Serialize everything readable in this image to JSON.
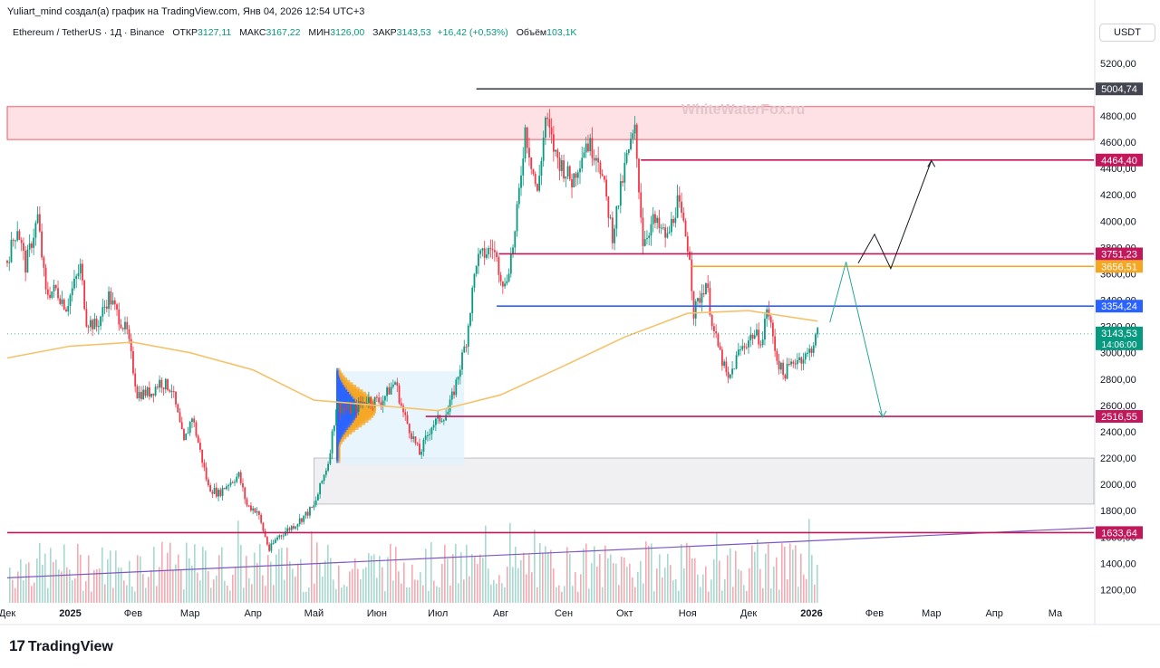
{
  "header": {
    "credit": "Yuliart_mind создал(а) график на TradingView.com, Янв 04, 2026 12:54 UTC+3"
  },
  "symbol": {
    "name": "Ethereum / TetherUS · 1Д · Binance",
    "open_label": "ОТКР",
    "open": "3127,11",
    "high_label": "МАКС",
    "high": "3167,22",
    "low_label": "МИН",
    "low": "3126,00",
    "close_label": "ЗАКР",
    "close": "3143,53",
    "change": "+16,42 (+0,53%)",
    "volume_label": "Объём",
    "volume": "103,1K"
  },
  "price_axis": {
    "currency": "USDT"
  },
  "watermark": "WhiteWaterFox.ru",
  "logo": {
    "text": "TradingView",
    "mark": "17"
  },
  "colors": {
    "up": "#089981",
    "down": "#f23645",
    "ma": "#f5c26b",
    "magenta": "#c2185b",
    "orange": "#f5a623",
    "blue": "#2962ff",
    "purple": "#7e57c2"
  },
  "chart_data": {
    "type": "candlestick",
    "y_ticks": [
      1200,
      1400,
      1600,
      1800,
      2000,
      2200,
      2400,
      2600,
      2800,
      3000,
      3200,
      3400,
      3600,
      3800,
      4000,
      4200,
      4400,
      4600,
      4800,
      5000,
      5200
    ],
    "y_tick_labels": [
      "1200,00",
      "1400,00",
      "1600,00",
      "1800,00",
      "2000,00",
      "2200,00",
      "2400,00",
      "2600,00",
      "2800,00",
      "3000,00",
      "3200,00",
      "3400,00",
      "3600,00",
      "3800,00",
      "4000,00",
      "4200,00",
      "4400,00",
      "4600,00",
      "4800,00",
      "5000,00",
      "5200,00"
    ],
    "ylim": [
      1100,
      5350
    ],
    "x_labels": [
      "Дек",
      "2025",
      "Фев",
      "Мар",
      "Апр",
      "Май",
      "Июн",
      "Июл",
      "Авг",
      "Сен",
      "Окт",
      "Ноя",
      "Дек",
      "2026",
      "Фев",
      "Мар",
      "Апр",
      "Ма"
    ],
    "x_label_dates": [
      "2024-12-01",
      "2025-01-01",
      "2025-02-01",
      "2025-03-01",
      "2025-04-01",
      "2025-05-01",
      "2025-06-01",
      "2025-07-01",
      "2025-08-01",
      "2025-09-01",
      "2025-10-01",
      "2025-11-01",
      "2025-12-01",
      "2026-01-01",
      "2026-02-01",
      "2026-03-01",
      "2026-04-01",
      "2026-05-01"
    ],
    "x_bold": [
      "2025",
      "2026"
    ],
    "close_path": [
      [
        "2024-12-01",
        3700
      ],
      [
        "2024-12-06",
        3960
      ],
      [
        "2024-12-10",
        3660
      ],
      [
        "2024-12-16",
        4030
      ],
      [
        "2024-12-20",
        3450
      ],
      [
        "2024-12-25",
        3480
      ],
      [
        "2024-12-30",
        3350
      ],
      [
        "2025-01-06",
        3650
      ],
      [
        "2025-01-09",
        3250
      ],
      [
        "2025-01-14",
        3200
      ],
      [
        "2025-01-20",
        3430
      ],
      [
        "2025-01-24",
        3300
      ],
      [
        "2025-01-29",
        3150
      ],
      [
        "2025-02-03",
        2690
      ],
      [
        "2025-02-10",
        2700
      ],
      [
        "2025-02-14",
        2780
      ],
      [
        "2025-02-20",
        2730
      ],
      [
        "2025-02-26",
        2310
      ],
      [
        "2025-03-02",
        2520
      ],
      [
        "2025-03-10",
        1980
      ],
      [
        "2025-03-15",
        1930
      ],
      [
        "2025-03-20",
        2010
      ],
      [
        "2025-03-25",
        2070
      ],
      [
        "2025-03-29",
        1840
      ],
      [
        "2025-04-03",
        1800
      ],
      [
        "2025-04-09",
        1500
      ],
      [
        "2025-04-13",
        1600
      ],
      [
        "2025-04-22",
        1700
      ],
      [
        "2025-05-01",
        1830
      ],
      [
        "2025-05-08",
        2170
      ],
      [
        "2025-05-12",
        2590
      ],
      [
        "2025-05-20",
        2560
      ],
      [
        "2025-05-27",
        2650
      ],
      [
        "2025-06-03",
        2630
      ],
      [
        "2025-06-10",
        2780
      ],
      [
        "2025-06-14",
        2540
      ],
      [
        "2025-06-22",
        2230
      ],
      [
        "2025-06-28",
        2450
      ],
      [
        "2025-07-06",
        2550
      ],
      [
        "2025-07-10",
        2770
      ],
      [
        "2025-07-15",
        3100
      ],
      [
        "2025-07-20",
        3700
      ],
      [
        "2025-07-28",
        3800
      ],
      [
        "2025-08-03",
        3500
      ],
      [
        "2025-08-08",
        3900
      ],
      [
        "2025-08-13",
        4700
      ],
      [
        "2025-08-19",
        4200
      ],
      [
        "2025-08-23",
        4780
      ],
      [
        "2025-08-28",
        4500
      ],
      [
        "2025-09-05",
        4300
      ],
      [
        "2025-09-12",
        4600
      ],
      [
        "2025-09-18",
        4500
      ],
      [
        "2025-09-25",
        3900
      ],
      [
        "2025-10-02",
        4480
      ],
      [
        "2025-10-06",
        4680
      ],
      [
        "2025-10-10",
        3850
      ],
      [
        "2025-10-15",
        4000
      ],
      [
        "2025-10-22",
        3870
      ],
      [
        "2025-10-27",
        4150
      ],
      [
        "2025-11-02",
        3750
      ],
      [
        "2025-11-04",
        3300
      ],
      [
        "2025-11-10",
        3540
      ],
      [
        "2025-11-14",
        3150
      ],
      [
        "2025-11-21",
        2780
      ],
      [
        "2025-11-26",
        3000
      ],
      [
        "2025-12-03",
        3140
      ],
      [
        "2025-12-08",
        3100
      ],
      [
        "2025-12-10",
        3350
      ],
      [
        "2025-12-15",
        2960
      ],
      [
        "2025-12-18",
        2830
      ],
      [
        "2025-12-24",
        2950
      ],
      [
        "2025-12-30",
        2980
      ],
      [
        "2026-01-04",
        3143
      ]
    ],
    "ma_path": [
      [
        "2024-12-01",
        2960
      ],
      [
        "2025-01-01",
        3050
      ],
      [
        "2025-02-01",
        3080
      ],
      [
        "2025-03-01",
        3000
      ],
      [
        "2025-04-01",
        2870
      ],
      [
        "2025-05-01",
        2640
      ],
      [
        "2025-06-01",
        2600
      ],
      [
        "2025-07-01",
        2560
      ],
      [
        "2025-08-01",
        2680
      ],
      [
        "2025-09-01",
        2900
      ],
      [
        "2025-10-01",
        3120
      ],
      [
        "2025-11-01",
        3300
      ],
      [
        "2025-12-01",
        3320
      ],
      [
        "2026-01-04",
        3240
      ]
    ],
    "horizontal_levels": [
      {
        "name": "level-5004",
        "value": 5004.74,
        "label": "5004,74",
        "color": "#434651",
        "from": "2025-07-20"
      },
      {
        "name": "level-4464",
        "value": 4464.4,
        "label": "4464,40",
        "color": "#c2185b",
        "from": "2025-10-09"
      },
      {
        "name": "level-3751",
        "value": 3751.23,
        "label": "3751,23",
        "color": "#c2185b",
        "from": "2025-07-31"
      },
      {
        "name": "level-3656",
        "value": 3656.51,
        "label": "3656,51",
        "color": "#f5a623",
        "from": "2025-11-03"
      },
      {
        "name": "level-3354",
        "value": 3354.24,
        "label": "3354,24",
        "color": "#2962ff",
        "from": "2025-07-30"
      },
      {
        "name": "level-2516",
        "value": 2516.55,
        "label": "2516,55",
        "color": "#c2185b",
        "from": "2025-06-25"
      },
      {
        "name": "level-1633",
        "value": 1633.64,
        "label": "1633,64",
        "color": "#c2185b",
        "from": "2024-12-01"
      }
    ],
    "current_price": {
      "value": 3143.53,
      "label": "3143,53",
      "timer": "14:06:00"
    },
    "zones": [
      {
        "name": "resistance-zone",
        "from": "2024-12-01",
        "to": "2026-05-20",
        "top": 4870,
        "bottom": 4620,
        "fill": "#fde1e4",
        "stroke": "#f23645"
      },
      {
        "name": "demand-zone",
        "from": "2025-05-01",
        "to": "2026-05-20",
        "top": 2200,
        "bottom": 1850,
        "fill": "#f0f0f2",
        "stroke": "#b2b5be"
      }
    ],
    "volume_profile_box": {
      "from": "2025-05-12",
      "to": "2025-07-14",
      "top": 2860,
      "bottom": 2150
    },
    "trendline": {
      "from": [
        "2024-12-01",
        1290
      ],
      "to": [
        "2026-05-20",
        1670
      ],
      "color": "#7e57c2"
    },
    "projection_black": [
      [
        "2026-01-24",
        3680
      ],
      [
        "2026-02-01",
        3900
      ],
      [
        "2026-02-09",
        3640
      ],
      [
        "2026-03-01",
        4460
      ]
    ],
    "projection_green": [
      [
        "2026-01-10",
        3230
      ],
      [
        "2026-01-18",
        3690
      ],
      [
        "2026-02-05",
        2510
      ]
    ]
  }
}
